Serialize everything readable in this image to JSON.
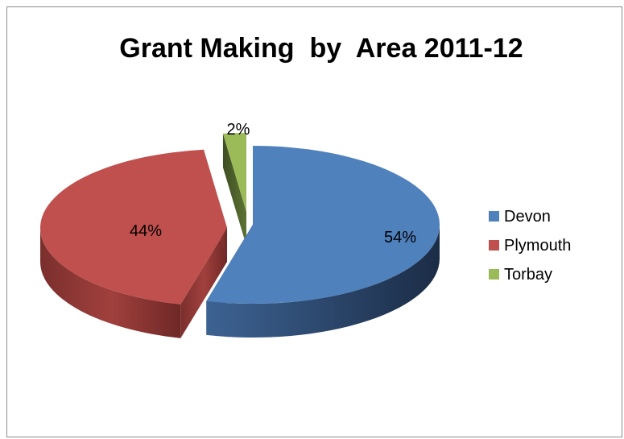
{
  "chart_data": {
    "type": "pie",
    "title": "Grant Making  by  Area 2011-12",
    "categories": [
      "Devon",
      "Plymouth",
      "Torbay"
    ],
    "values": [
      54,
      44,
      2
    ],
    "labels": [
      "54%",
      "44%",
      "2%"
    ],
    "colors": [
      "#4f81bd",
      "#c0504d",
      "#9bbb59"
    ],
    "exploded": true,
    "three_d": true,
    "legend_position": "right"
  }
}
